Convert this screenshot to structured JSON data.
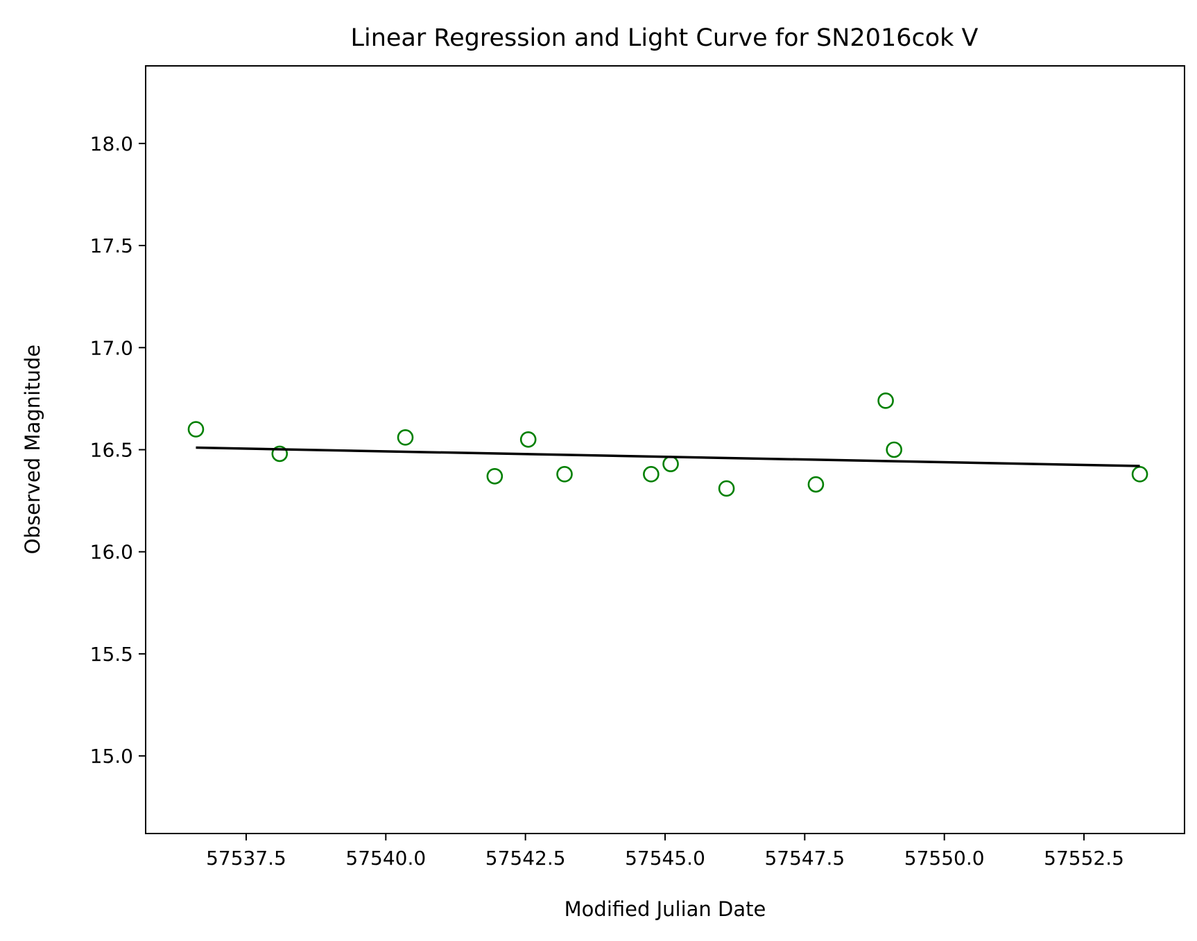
{
  "chart_data": {
    "type": "scatter",
    "title": "Linear Regression and Light Curve for SN2016cok V",
    "xlabel": "Modified Julian Date",
    "ylabel": "Observed Magnitude",
    "xlim": [
      57535.7,
      57554.3
    ],
    "ylim": [
      18.38,
      14.62
    ],
    "y_inverted": true,
    "grid": false,
    "x_ticks": [
      57537.5,
      57540.0,
      57542.5,
      57545.0,
      57547.5,
      57550.0,
      57552.5
    ],
    "x_tick_labels": [
      "57537.5",
      "57540.0",
      "57542.5",
      "57545.0",
      "57547.5",
      "57550.0",
      "57552.5"
    ],
    "y_ticks": [
      15.0,
      15.5,
      16.0,
      16.5,
      17.0,
      17.5,
      18.0
    ],
    "y_tick_labels": [
      "15.0",
      "15.5",
      "16.0",
      "16.5",
      "17.0",
      "17.5",
      "18.0"
    ],
    "series": [
      {
        "kind": "scatter",
        "color": "#008000",
        "marker": "open-circle",
        "x": [
          57536.6,
          57538.1,
          57540.35,
          57541.95,
          57542.55,
          57543.2,
          57544.75,
          57545.1,
          57546.1,
          57547.7,
          57548.95,
          57549.1,
          57553.5
        ],
        "y": [
          16.6,
          16.48,
          16.56,
          16.37,
          16.55,
          16.38,
          16.38,
          16.43,
          16.31,
          16.33,
          16.74,
          16.5,
          16.38
        ]
      },
      {
        "kind": "line",
        "color": "#000000",
        "x": [
          57536.6,
          57553.5
        ],
        "y": [
          16.51,
          16.42
        ]
      }
    ]
  }
}
